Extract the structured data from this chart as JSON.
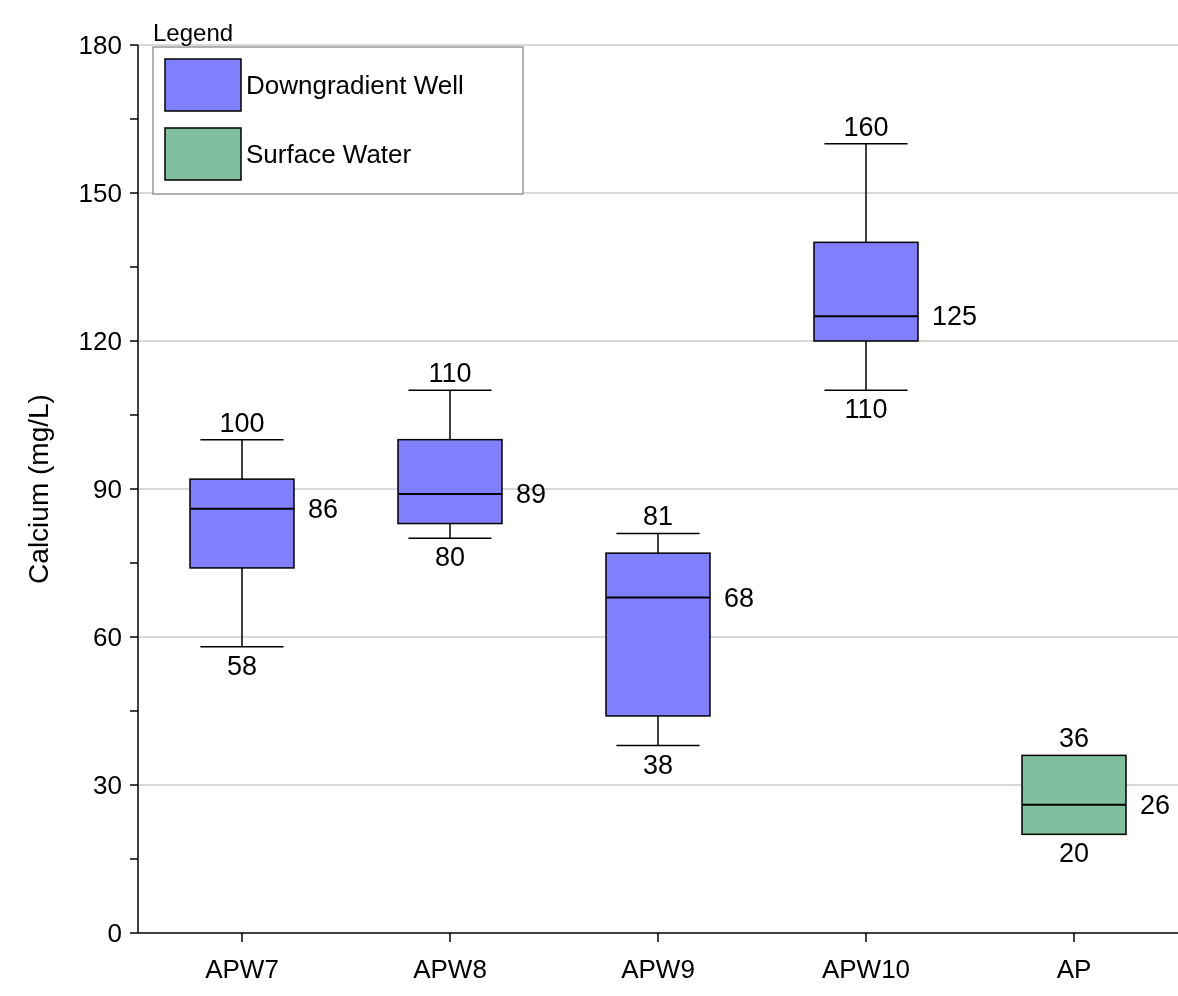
{
  "chart_data": {
    "type": "box",
    "ylabel": "Calcium (mg/L)",
    "legend_title": "Legend",
    "categories": [
      "APW7",
      "APW8",
      "APW9",
      "APW10",
      "AP"
    ],
    "ylim": [
      0,
      180
    ],
    "yticks": [
      0,
      {
        "value": 15,
        "label": null
      },
      30,
      {
        "value": 45,
        "label": null
      },
      60,
      {
        "value": 75,
        "label": null
      },
      90,
      {
        "value": 105,
        "label": null
      },
      120,
      {
        "value": 135,
        "label": null
      },
      150,
      {
        "value": 165,
        "label": null
      },
      180
    ],
    "grid": "y",
    "legend": "top left",
    "series": [
      {
        "name": "Downgradient Well",
        "color": "#8080ff",
        "boxes": [
          {
            "low": 58,
            "q1": 74,
            "median": 86,
            "q3": 92,
            "high": 100
          },
          {
            "low": 80,
            "q1": 83,
            "median": 89,
            "q3": 100,
            "high": 110
          },
          {
            "low": 38,
            "q1": 44,
            "median": 68,
            "q3": 77,
            "high": 81
          },
          {
            "low": 110,
            "q1": 120,
            "median": 125,
            "q3": 140,
            "high": 160
          },
          null
        ]
      },
      {
        "name": "Surface Water",
        "color": "#80c09e",
        "boxes": [
          null,
          null,
          null,
          null,
          {
            "low": 20,
            "q1": 20,
            "median": 26,
            "q3": 36,
            "high": 36
          }
        ]
      }
    ],
    "annotations": [
      {
        "text": "100",
        "x": "APW7",
        "y": 100
      },
      {
        "text": "86",
        "x": "APW7",
        "y": 86
      },
      {
        "text": "58",
        "x": "APW7",
        "y": 58
      },
      {
        "text": "110",
        "x": "APW8",
        "y": 110
      },
      {
        "text": "89",
        "x": "APW8",
        "y": 89
      },
      {
        "text": "80",
        "x": "APW8",
        "y": 80
      },
      {
        "text": "81",
        "x": "APW9",
        "y": 81
      },
      {
        "text": "68",
        "x": "APW9",
        "y": 68
      },
      {
        "text": "38",
        "x": "APW9",
        "y": 38
      },
      {
        "text": "160",
        "x": "APW10",
        "y": 160
      },
      {
        "text": "125",
        "x": "APW10",
        "y": 125
      },
      {
        "text": "110",
        "x": "APW10",
        "y": 110
      },
      {
        "text": "36",
        "x": "AP",
        "y": 36
      },
      {
        "text": "26",
        "x": "AP",
        "y": 26
      },
      {
        "text": "20",
        "x": "AP",
        "y": 20
      }
    ]
  }
}
